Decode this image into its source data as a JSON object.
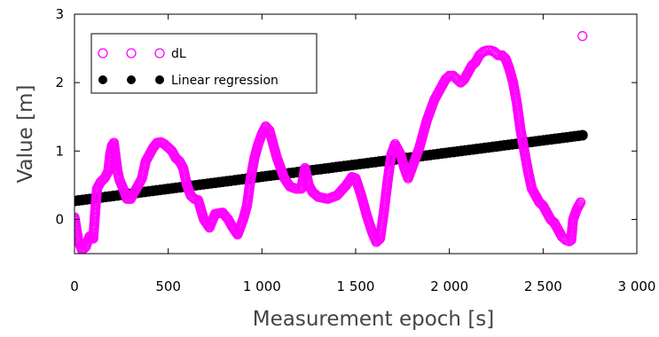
{
  "chart_data": {
    "type": "scatter",
    "title": "",
    "xlabel": "Measurement epoch [s]",
    "ylabel": "Value [m]",
    "xlim": [
      0,
      3000
    ],
    "ylim": [
      -0.5,
      3
    ],
    "xticks": [
      0,
      500,
      1000,
      1500,
      2000,
      2500,
      3000
    ],
    "xtick_labels": [
      "0",
      "500",
      "1 000",
      "1 500",
      "2 000",
      "2 500",
      "3 000"
    ],
    "yticks": [
      0,
      1,
      2,
      3
    ],
    "ytick_labels": [
      "0",
      "1",
      "2",
      "3"
    ],
    "grid": false,
    "legend_position": "top-left",
    "series": [
      {
        "name": "dL",
        "marker": "open-circle",
        "color": "#ff00ff",
        "points": [
          [
            0,
            0.03
          ],
          [
            20,
            -0.3
          ],
          [
            40,
            -0.45
          ],
          [
            60,
            -0.4
          ],
          [
            80,
            -0.25
          ],
          [
            100,
            -0.28
          ],
          [
            110,
            0.1
          ],
          [
            120,
            0.45
          ],
          [
            140,
            0.55
          ],
          [
            160,
            0.6
          ],
          [
            180,
            0.7
          ],
          [
            190,
            0.95
          ],
          [
            200,
            1.08
          ],
          [
            210,
            1.12
          ],
          [
            220,
            0.9
          ],
          [
            230,
            0.7
          ],
          [
            240,
            0.58
          ],
          [
            260,
            0.45
          ],
          [
            280,
            0.3
          ],
          [
            300,
            0.3
          ],
          [
            330,
            0.45
          ],
          [
            360,
            0.6
          ],
          [
            380,
            0.85
          ],
          [
            400,
            0.95
          ],
          [
            420,
            1.05
          ],
          [
            440,
            1.12
          ],
          [
            460,
            1.13
          ],
          [
            480,
            1.1
          ],
          [
            500,
            1.05
          ],
          [
            520,
            1.0
          ],
          [
            540,
            0.9
          ],
          [
            560,
            0.85
          ],
          [
            580,
            0.75
          ],
          [
            600,
            0.5
          ],
          [
            620,
            0.35
          ],
          [
            640,
            0.3
          ],
          [
            660,
            0.28
          ],
          [
            690,
            0.0
          ],
          [
            720,
            -0.12
          ],
          [
            750,
            0.08
          ],
          [
            790,
            0.1
          ],
          [
            820,
            0.0
          ],
          [
            840,
            -0.1
          ],
          [
            870,
            -0.22
          ],
          [
            900,
            0.0
          ],
          [
            920,
            0.2
          ],
          [
            940,
            0.6
          ],
          [
            960,
            0.9
          ],
          [
            980,
            1.1
          ],
          [
            1000,
            1.25
          ],
          [
            1020,
            1.36
          ],
          [
            1040,
            1.3
          ],
          [
            1060,
            1.1
          ],
          [
            1080,
            0.9
          ],
          [
            1100,
            0.75
          ],
          [
            1120,
            0.6
          ],
          [
            1150,
            0.48
          ],
          [
            1180,
            0.45
          ],
          [
            1210,
            0.45
          ],
          [
            1230,
            0.75
          ],
          [
            1250,
            0.5
          ],
          [
            1270,
            0.4
          ],
          [
            1300,
            0.33
          ],
          [
            1350,
            0.3
          ],
          [
            1400,
            0.35
          ],
          [
            1450,
            0.5
          ],
          [
            1480,
            0.62
          ],
          [
            1500,
            0.6
          ],
          [
            1530,
            0.35
          ],
          [
            1560,
            0.05
          ],
          [
            1590,
            -0.2
          ],
          [
            1610,
            -0.33
          ],
          [
            1630,
            -0.28
          ],
          [
            1650,
            0.1
          ],
          [
            1670,
            0.55
          ],
          [
            1690,
            0.95
          ],
          [
            1710,
            1.1
          ],
          [
            1720,
            1.05
          ],
          [
            1740,
            0.95
          ],
          [
            1760,
            0.75
          ],
          [
            1780,
            0.6
          ],
          [
            1800,
            0.75
          ],
          [
            1820,
            0.9
          ],
          [
            1840,
            1.05
          ],
          [
            1860,
            1.25
          ],
          [
            1880,
            1.45
          ],
          [
            1900,
            1.6
          ],
          [
            1920,
            1.75
          ],
          [
            1940,
            1.85
          ],
          [
            1960,
            1.95
          ],
          [
            1980,
            2.05
          ],
          [
            2000,
            2.1
          ],
          [
            2020,
            2.1
          ],
          [
            2040,
            2.05
          ],
          [
            2060,
            2.0
          ],
          [
            2080,
            2.05
          ],
          [
            2100,
            2.15
          ],
          [
            2120,
            2.25
          ],
          [
            2140,
            2.3
          ],
          [
            2160,
            2.4
          ],
          [
            2180,
            2.45
          ],
          [
            2200,
            2.47
          ],
          [
            2220,
            2.47
          ],
          [
            2240,
            2.45
          ],
          [
            2260,
            2.4
          ],
          [
            2280,
            2.4
          ],
          [
            2300,
            2.35
          ],
          [
            2320,
            2.2
          ],
          [
            2340,
            2.0
          ],
          [
            2360,
            1.7
          ],
          [
            2380,
            1.3
          ],
          [
            2400,
            1.0
          ],
          [
            2420,
            0.7
          ],
          [
            2440,
            0.45
          ],
          [
            2460,
            0.35
          ],
          [
            2480,
            0.25
          ],
          [
            2500,
            0.2
          ],
          [
            2520,
            0.1
          ],
          [
            2540,
            0.0
          ],
          [
            2560,
            -0.05
          ],
          [
            2580,
            -0.15
          ],
          [
            2600,
            -0.25
          ],
          [
            2620,
            -0.3
          ],
          [
            2640,
            -0.32
          ],
          [
            2650,
            -0.3
          ],
          [
            2660,
            0.0
          ],
          [
            2680,
            0.15
          ],
          [
            2700,
            0.25
          ],
          [
            2710,
            2.68
          ]
        ]
      },
      {
        "name": "Linear regression",
        "marker": "filled-circle",
        "color": "#000000",
        "x": [
          0,
          2710
        ],
        "y": [
          0.27,
          1.23
        ]
      }
    ]
  }
}
